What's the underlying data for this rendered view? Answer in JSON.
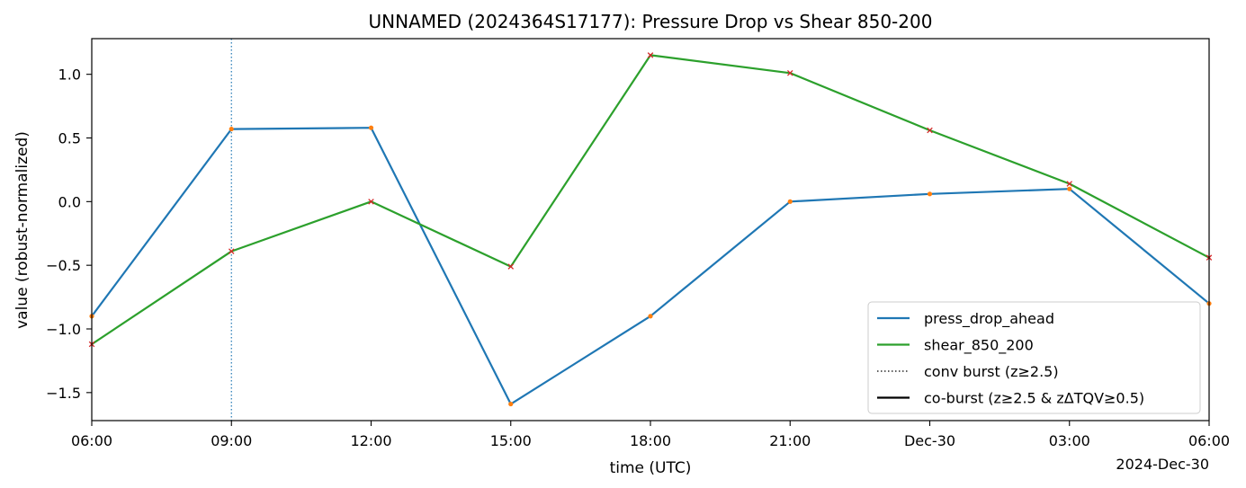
{
  "chart_data": {
    "type": "line",
    "title": "UNNAMED (2024364S17177): Pressure Drop vs Shear 850-200",
    "xlabel": "time (UTC)",
    "ylabel": "value (robust-normalized)",
    "x": [
      "2024-12-29 06:00",
      "2024-12-29 09:00",
      "2024-12-29 12:00",
      "2024-12-29 15:00",
      "2024-12-29 18:00",
      "2024-12-29 21:00",
      "2024-12-30 00:00",
      "2024-12-30 03:00",
      "2024-12-30 06:00"
    ],
    "x_tick_labels": [
      "06:00",
      "09:00",
      "12:00",
      "15:00",
      "18:00",
      "21:00",
      "Dec-30",
      "03:00",
      "06:00"
    ],
    "x_offset_label": "2024-Dec-30",
    "ylim": [
      -1.72,
      1.28
    ],
    "y_ticks": [
      -1.5,
      -1.0,
      -0.5,
      0.0,
      0.5,
      1.0
    ],
    "y_tick_labels": [
      "−1.5",
      "−1.0",
      "−0.5",
      "0.0",
      "0.5",
      "1.0"
    ],
    "grid": false,
    "legend_position": "lower-right",
    "series": [
      {
        "name": "press_drop_ahead",
        "color": "#1f77b4",
        "marker": "dot",
        "marker_color": "#ff7f0e",
        "values": [
          -0.9,
          0.57,
          0.58,
          -1.59,
          -0.9,
          0.0,
          0.06,
          0.1,
          -0.8
        ]
      },
      {
        "name": "shear_850_200",
        "color": "#2ca02c",
        "marker": "x",
        "marker_color": "#d62728",
        "values": [
          -1.12,
          -0.39,
          0.0,
          -0.51,
          1.15,
          1.01,
          0.56,
          0.14,
          -0.44
        ]
      }
    ],
    "burst_lines": [
      {
        "x": "2024-12-29 09:00",
        "style": "dotted",
        "color": "#1f77b4"
      }
    ],
    "legend_entries": [
      {
        "label": "press_drop_ahead",
        "style": "solid",
        "color": "#1f77b4"
      },
      {
        "label": "shear_850_200",
        "style": "solid",
        "color": "#2ca02c"
      },
      {
        "label": "conv burst (z≥2.5)",
        "style": "dotted",
        "color": "#000000"
      },
      {
        "label": "co-burst (z≥2.5 & zΔTQV≥0.5)",
        "style": "solid",
        "color": "#000000"
      }
    ]
  }
}
